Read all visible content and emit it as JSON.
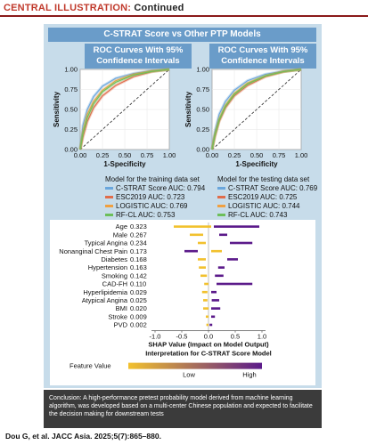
{
  "header": {
    "label": "CENTRAL ILLUSTRATION:",
    "sub": "Continued"
  },
  "panel_title": "C-STRAT Score vs Other PTP Models",
  "chart_data": [
    {
      "type": "line",
      "title": "ROC Curves With 95% Confidence Intervals",
      "xlabel": "1-Specificity",
      "ylabel": "Sensitivity",
      "xlim": [
        0,
        1
      ],
      "ylim": [
        0,
        1
      ],
      "ticks": [
        "0.00",
        "0.25",
        "0.50",
        "0.75",
        "1.00"
      ],
      "legend_title": "Model for the training data set",
      "series": [
        {
          "name": "C-STRAT Score AUC: 0.794",
          "color": "#6aa6dc",
          "x": [
            0,
            0.03,
            0.08,
            0.15,
            0.25,
            0.4,
            0.6,
            0.8,
            1
          ],
          "y": [
            0,
            0.3,
            0.5,
            0.66,
            0.79,
            0.89,
            0.95,
            0.985,
            1
          ]
        },
        {
          "name": "ESC2019 AUC: 0.723",
          "color": "#e06c4a",
          "x": [
            0,
            0.03,
            0.08,
            0.15,
            0.25,
            0.4,
            0.6,
            0.8,
            1
          ],
          "y": [
            0,
            0.15,
            0.35,
            0.52,
            0.67,
            0.8,
            0.91,
            0.97,
            1
          ]
        },
        {
          "name": "LOGISTIC AUC: 0.769",
          "color": "#f0a040",
          "x": [
            0,
            0.03,
            0.08,
            0.15,
            0.25,
            0.4,
            0.6,
            0.8,
            1
          ],
          "y": [
            0,
            0.22,
            0.44,
            0.6,
            0.74,
            0.86,
            0.94,
            0.98,
            1
          ]
        },
        {
          "name": "RF-CL AUC: 0.753",
          "color": "#6cbf5a",
          "x": [
            0,
            0.03,
            0.08,
            0.15,
            0.25,
            0.4,
            0.6,
            0.8,
            1
          ],
          "y": [
            0,
            0.2,
            0.4,
            0.57,
            0.72,
            0.84,
            0.93,
            0.975,
            1
          ]
        }
      ]
    },
    {
      "type": "line",
      "title": "ROC Curves With 95% Confidence Intervals",
      "xlabel": "1-Specificity",
      "ylabel": "Sensitivity",
      "xlim": [
        0,
        1
      ],
      "ylim": [
        0,
        1
      ],
      "ticks": [
        "0.00",
        "0.25",
        "0.50",
        "0.75",
        "1.00"
      ],
      "legend_title": "Model for the testing data set",
      "series": [
        {
          "name": "C-STRAT Score AUC: 0.769",
          "color": "#6aa6dc",
          "x": [
            0,
            0.03,
            0.08,
            0.15,
            0.25,
            0.4,
            0.6,
            0.8,
            1
          ],
          "y": [
            0,
            0.22,
            0.44,
            0.6,
            0.74,
            0.86,
            0.94,
            0.98,
            1
          ]
        },
        {
          "name": "ESC2019 AUC: 0.725",
          "color": "#e06c4a",
          "x": [
            0,
            0.03,
            0.08,
            0.15,
            0.25,
            0.4,
            0.6,
            0.8,
            1
          ],
          "y": [
            0,
            0.15,
            0.35,
            0.52,
            0.67,
            0.8,
            0.91,
            0.97,
            1
          ]
        },
        {
          "name": "LOGISTIC AUC: 0.744",
          "color": "#f0a040",
          "x": [
            0,
            0.03,
            0.08,
            0.15,
            0.25,
            0.4,
            0.6,
            0.8,
            1
          ],
          "y": [
            0,
            0.18,
            0.38,
            0.55,
            0.7,
            0.83,
            0.92,
            0.975,
            1
          ]
        },
        {
          "name": "RF-CL AUC: 0.743",
          "color": "#6cbf5a",
          "x": [
            0,
            0.03,
            0.08,
            0.15,
            0.25,
            0.4,
            0.6,
            0.8,
            1
          ],
          "y": [
            0,
            0.17,
            0.37,
            0.54,
            0.69,
            0.82,
            0.92,
            0.972,
            1
          ]
        }
      ]
    },
    {
      "type": "scatter",
      "xlabel": "SHAP Value (Impact on Model Output)",
      "subtitle": "Interpretation for C-STRAT Score Model",
      "xlim": [
        -1.0,
        1.0
      ],
      "xticks": [
        "-1.0",
        "-0.5",
        "0.0",
        "0.5",
        "1.0"
      ],
      "colorbar": {
        "title": "Feature Value",
        "low": "Low",
        "high": "High",
        "low_color": "#f2c12e",
        "high_color": "#5b1a8a"
      },
      "features": [
        {
          "name": "Age",
          "importance": "0.323",
          "neg": [
            -0.65,
            0.05
          ],
          "pos": [
            0.1,
            0.95
          ]
        },
        {
          "name": "Male",
          "importance": "0.267",
          "neg": [
            -0.35,
            -0.1
          ],
          "pos": [
            0.2,
            0.35
          ]
        },
        {
          "name": "Typical Angina",
          "importance": "0.234",
          "neg": [
            -0.2,
            -0.05
          ],
          "pos": [
            0.4,
            0.82
          ]
        },
        {
          "name": "Nonanginal Chest Pain",
          "importance": "0.173",
          "neg": [
            0.05,
            0.25
          ],
          "pos": [
            -0.45,
            -0.2
          ]
        },
        {
          "name": "Diabetes",
          "importance": "0.168",
          "neg": [
            -0.2,
            -0.05
          ],
          "pos": [
            0.35,
            0.55
          ]
        },
        {
          "name": "Hypertension",
          "importance": "0.163",
          "neg": [
            -0.18,
            -0.05
          ],
          "pos": [
            0.18,
            0.3
          ]
        },
        {
          "name": "Smoking",
          "importance": "0.142",
          "neg": [
            -0.15,
            -0.03
          ],
          "pos": [
            0.12,
            0.28
          ]
        },
        {
          "name": "CAD-FH",
          "importance": "0.110",
          "neg": [
            -0.08,
            0.0
          ],
          "pos": [
            0.15,
            0.82
          ]
        },
        {
          "name": "Hyperlipidemia",
          "importance": "0.029",
          "neg": [
            -0.12,
            -0.02
          ],
          "pos": [
            0.05,
            0.15
          ]
        },
        {
          "name": "Atypical Angina",
          "importance": "0.025",
          "neg": [
            -0.1,
            -0.02
          ],
          "pos": [
            0.06,
            0.2
          ]
        },
        {
          "name": "BMI",
          "importance": "0.020",
          "neg": [
            -0.1,
            0.0
          ],
          "pos": [
            0.05,
            0.22
          ]
        },
        {
          "name": "Stroke",
          "importance": "0.009",
          "neg": [
            -0.05,
            0.0
          ],
          "pos": [
            0.05,
            0.12
          ]
        },
        {
          "name": "PVD",
          "importance": "0.002",
          "neg": [
            -0.04,
            0.0
          ],
          "pos": [
            0.02,
            0.07
          ]
        }
      ]
    }
  ],
  "conclusion": "Conclusion: A high-performance pretest probability model derived from machine learning algorithm, was developed based on a multi-center Chinese population and expected to facilitate the decision making for downstream tests",
  "citation": "Dou G, et al. JACC Asia. 2025;5(7):865–880."
}
